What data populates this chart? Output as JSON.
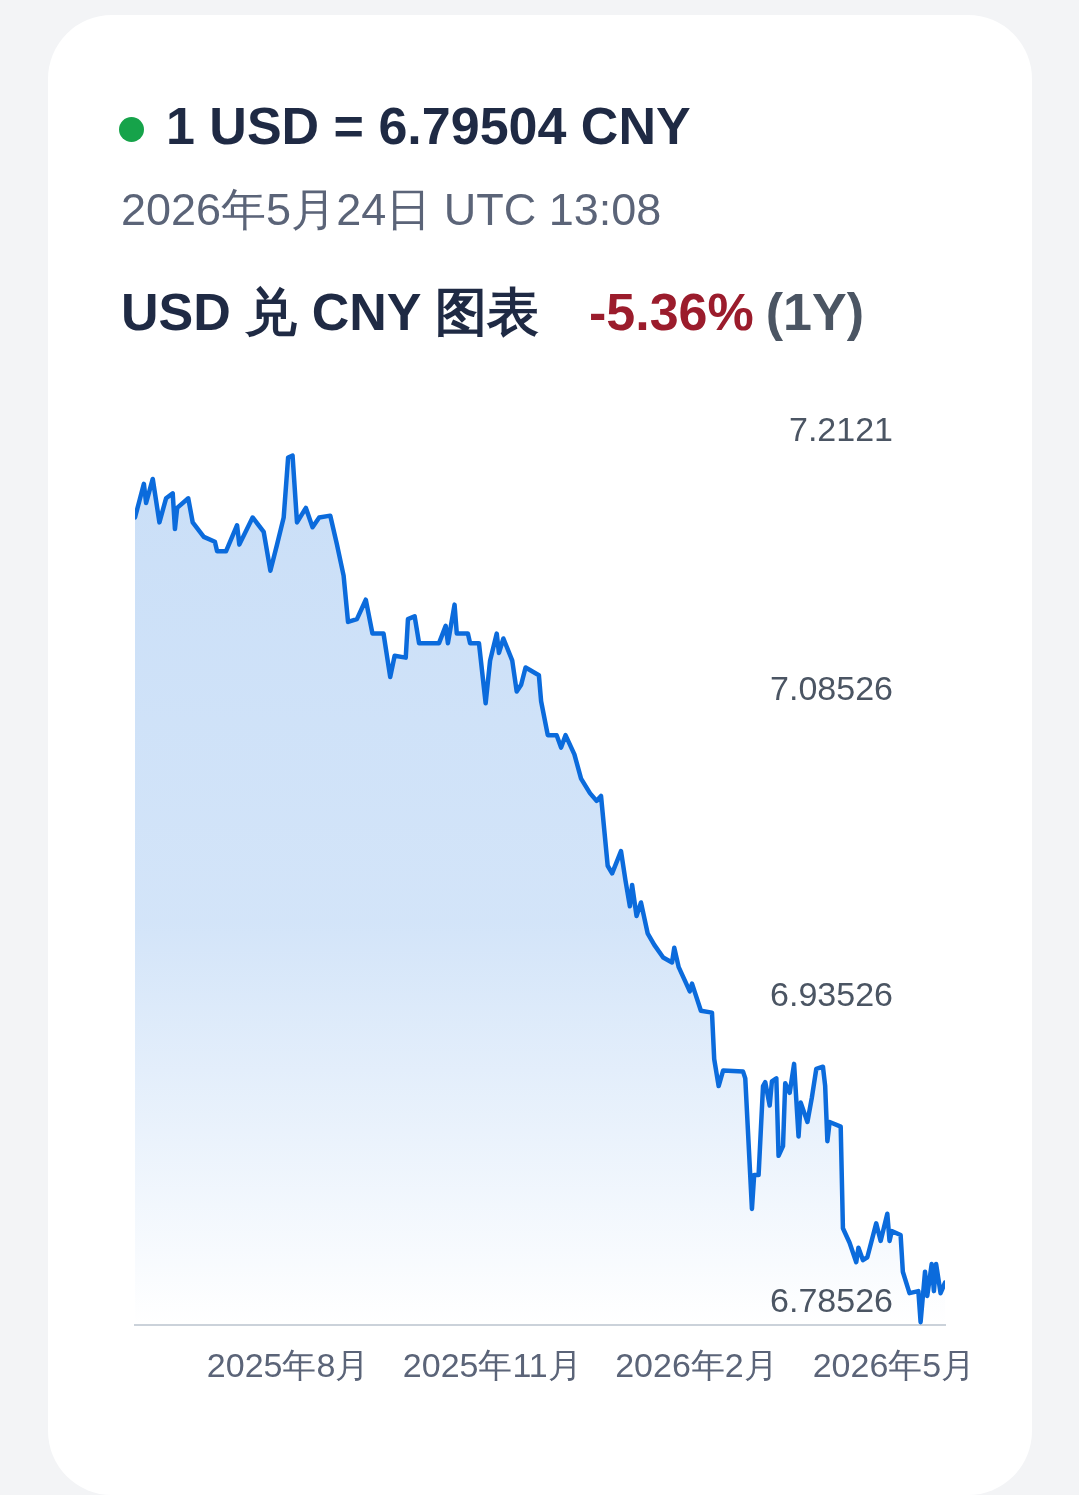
{
  "chart_data": {
    "type": "area",
    "title": "1 USD = 6.79504 CNY",
    "subtitle": "2026年5月24日 UTC 13:08",
    "annotations": [
      "USD 兑 CNY 图表",
      "-5.36%",
      "(1Y)"
    ],
    "x": [
      "2025-05-24",
      "2025-05-28",
      "2025-05-29",
      "2025-06-01",
      "2025-06-04",
      "2025-06-07",
      "2025-06-10",
      "2025-06-11",
      "2025-06-12",
      "2025-06-17",
      "2025-06-19",
      "2025-06-24",
      "2025-06-29",
      "2025-06-30",
      "2025-07-04",
      "2025-07-09",
      "2025-07-10",
      "2025-07-16",
      "2025-07-21",
      "2025-07-24",
      "2025-07-27",
      "2025-07-30",
      "2025-08-01",
      "2025-08-03",
      "2025-08-05",
      "2025-08-09",
      "2025-08-12",
      "2025-08-15",
      "2025-08-20",
      "2025-08-23",
      "2025-08-26",
      "2025-08-28",
      "2025-09-01",
      "2025-09-05",
      "2025-09-08",
      "2025-09-13",
      "2025-09-16",
      "2025-09-18",
      "2025-09-23",
      "2025-09-24",
      "2025-09-27",
      "2025-09-29",
      "2025-10-08",
      "2025-10-11",
      "2025-10-12",
      "2025-10-15",
      "2025-10-16",
      "2025-10-21",
      "2025-10-22",
      "2025-10-26",
      "2025-10-29",
      "2025-10-31",
      "2025-11-03",
      "2025-11-04",
      "2025-11-06",
      "2025-11-10",
      "2025-11-12",
      "2025-11-14",
      "2025-11-16",
      "2025-11-22",
      "2025-11-23",
      "2025-11-26",
      "2025-11-30",
      "2025-12-02",
      "2025-12-04",
      "2025-12-08",
      "2025-12-11",
      "2025-12-15",
      "2025-12-18",
      "2025-12-20",
      "2025-12-23",
      "2025-12-25",
      "2025-12-29",
      "2025-12-31",
      "2026-01-02",
      "2026-01-03",
      "2026-01-05",
      "2026-01-07",
      "2026-01-10",
      "2026-01-13",
      "2026-01-17",
      "2026-01-21",
      "2026-01-22",
      "2026-01-24",
      "2026-01-27",
      "2026-01-29",
      "2026-01-30",
      "2026-02-03",
      "2026-02-08",
      "2026-02-09",
      "2026-02-11",
      "2026-02-13",
      "2026-02-22",
      "2026-02-23",
      "2026-02-26",
      "2026-02-27",
      "2026-03-01",
      "2026-03-03",
      "2026-03-04",
      "2026-03-06",
      "2026-03-07",
      "2026-03-09",
      "2026-03-10",
      "2026-03-12",
      "2026-03-13",
      "2026-03-15",
      "2026-03-17",
      "2026-03-19",
      "2026-03-20",
      "2026-03-23",
      "2026-03-25",
      "2026-03-27",
      "2026-03-30",
      "2026-03-31",
      "2026-04-01",
      "2026-04-02",
      "2026-04-07",
      "2026-04-08",
      "2026-04-11",
      "2026-04-14",
      "2026-04-15",
      "2026-04-17",
      "2026-04-19",
      "2026-04-23",
      "2026-04-25",
      "2026-04-28",
      "2026-04-29",
      "2026-04-30",
      "2026-05-04",
      "2026-05-05",
      "2026-05-08",
      "2026-05-12",
      "2026-05-13",
      "2026-05-15",
      "2026-05-16",
      "2026-05-18",
      "2026-05-19",
      "2026-05-20",
      "2026-05-22",
      "2026-05-24"
    ],
    "series": [
      {
        "color": "#0b6bdc",
        "values": [
          7.1702,
          7.1867,
          7.1773,
          7.1891,
          7.1678,
          7.1796,
          7.182,
          7.1645,
          7.1749,
          7.1796,
          7.1678,
          7.1607,
          7.1583,
          7.1536,
          7.1536,
          7.1664,
          7.1569,
          7.1702,
          7.1631,
          7.1441,
          7.1569,
          7.1702,
          7.1996,
          7.2005,
          7.1678,
          7.1749,
          7.1654,
          7.1702,
          7.1711,
          7.1569,
          7.1417,
          7.119,
          7.1204,
          7.1299,
          7.1133,
          7.1133,
          7.092,
          7.1024,
          7.1015,
          7.1204,
          7.1218,
          7.1086,
          7.1086,
          7.1171,
          7.1086,
          7.1275,
          7.1133,
          7.1133,
          7.1086,
          7.1086,
          7.0792,
          7.1,
          7.1133,
          7.1038,
          7.1109,
          7.1,
          7.0849,
          7.0882,
          7.0967,
          7.0929,
          7.0801,
          7.0635,
          7.0635,
          7.0574,
          7.0635,
          7.0541,
          7.0422,
          7.0351,
          7.0313,
          7.0337,
          6.9995,
          6.9958,
          7.0067,
          6.9924,
          6.9796,
          6.9901,
          6.9749,
          6.9815,
          6.9664,
          6.9607,
          6.9545,
          6.9521,
          6.9593,
          6.9498,
          6.9427,
          6.9379,
          6.9417,
          6.9284,
          6.9275,
          6.9047,
          6.8915,
          6.8991,
          6.8986,
          6.8953,
          6.8313,
          6.8479,
          6.8479,
          6.8915,
          6.8934,
          6.882,
          6.8938,
          6.8953,
          6.8573,
          6.8621,
          6.8929,
          6.8882,
          6.9024,
          6.8668,
          6.8834,
          6.8739,
          6.8858,
          6.8999,
          6.901,
          6.8915,
          6.8645,
          6.8739,
          6.8716,
          6.8218,
          6.8147,
          6.8052,
          6.8123,
          6.8062,
          6.8076,
          6.8242,
          6.8156,
          6.8289,
          6.8156,
          6.8204,
          6.8185,
          6.8005,
          6.79,
          6.791,
          6.7758,
          6.8005,
          6.7886,
          6.8043,
          6.791,
          6.8043,
          6.79,
          6.7952
        ]
      }
    ],
    "xlim": [
      "2025-05-24",
      "2026-05-24"
    ],
    "xticks": [
      {
        "value": "2025-08-01",
        "label": "2025年8月"
      },
      {
        "value": "2025-11-01",
        "label": "2025年11月"
      },
      {
        "value": "2026-02-01",
        "label": "2026年2月"
      },
      {
        "value": "2026-05-01",
        "label": "2026年5月"
      }
    ],
    "ylim": [
      6.7743,
      7.2121
    ],
    "yticks": [
      6.78526,
      6.93526,
      7.08526,
      7.2121
    ],
    "grid": false,
    "legend": false
  }
}
